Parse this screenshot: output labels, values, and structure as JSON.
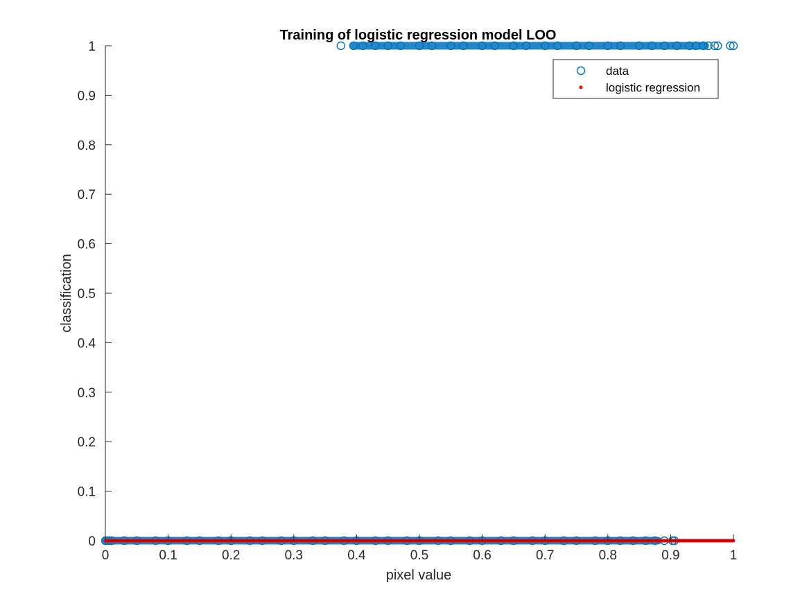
{
  "chart_data": {
    "type": "scatter",
    "title": "Training of logistic regression model LOO",
    "xlabel": "pixel value",
    "ylabel": "classification",
    "xlim": [
      0,
      1
    ],
    "ylim": [
      0,
      1
    ],
    "x_ticks": [
      0,
      0.1,
      0.2,
      0.3,
      0.4,
      0.5,
      0.6,
      0.7,
      0.8,
      0.9,
      1
    ],
    "x_tick_labels": [
      "0",
      "0.1",
      "0.2",
      "0.3",
      "0.4",
      "0.5",
      "0.6",
      "0.7",
      "0.8",
      "0.9",
      "1"
    ],
    "y_ticks": [
      0,
      0.1,
      0.2,
      0.3,
      0.4,
      0.5,
      0.6,
      0.7,
      0.8,
      0.9,
      1
    ],
    "y_tick_labels": [
      "0",
      "0.1",
      "0.2",
      "0.3",
      "0.4",
      "0.5",
      "0.6",
      "0.7",
      "0.8",
      "0.9",
      "1"
    ],
    "grid": false,
    "legend_position": "top-right",
    "series": [
      {
        "name": "data",
        "marker": "open-circle",
        "color": "#0072BD",
        "points": [
          {
            "x": 0.0,
            "y": 0
          },
          {
            "x": 0.005,
            "y": 0
          },
          {
            "x": 0.01,
            "y": 0
          },
          {
            "x": 0.03,
            "y": 0
          },
          {
            "x": 0.05,
            "y": 0
          },
          {
            "x": 0.08,
            "y": 0
          },
          {
            "x": 0.1,
            "y": 0
          },
          {
            "x": 0.13,
            "y": 0
          },
          {
            "x": 0.15,
            "y": 0
          },
          {
            "x": 0.18,
            "y": 0
          },
          {
            "x": 0.2,
            "y": 0
          },
          {
            "x": 0.23,
            "y": 0
          },
          {
            "x": 0.25,
            "y": 0
          },
          {
            "x": 0.28,
            "y": 0
          },
          {
            "x": 0.3,
            "y": 0
          },
          {
            "x": 0.33,
            "y": 0
          },
          {
            "x": 0.35,
            "y": 0
          },
          {
            "x": 0.38,
            "y": 0
          },
          {
            "x": 0.4,
            "y": 0
          },
          {
            "x": 0.43,
            "y": 0
          },
          {
            "x": 0.45,
            "y": 0
          },
          {
            "x": 0.48,
            "y": 0
          },
          {
            "x": 0.5,
            "y": 0
          },
          {
            "x": 0.53,
            "y": 0
          },
          {
            "x": 0.55,
            "y": 0
          },
          {
            "x": 0.58,
            "y": 0
          },
          {
            "x": 0.6,
            "y": 0
          },
          {
            "x": 0.63,
            "y": 0
          },
          {
            "x": 0.65,
            "y": 0
          },
          {
            "x": 0.68,
            "y": 0
          },
          {
            "x": 0.7,
            "y": 0
          },
          {
            "x": 0.73,
            "y": 0
          },
          {
            "x": 0.75,
            "y": 0
          },
          {
            "x": 0.78,
            "y": 0
          },
          {
            "x": 0.8,
            "y": 0
          },
          {
            "x": 0.82,
            "y": 0
          },
          {
            "x": 0.84,
            "y": 0
          },
          {
            "x": 0.86,
            "y": 0
          },
          {
            "x": 0.875,
            "y": 0
          },
          {
            "x": 0.89,
            "y": 0
          },
          {
            "x": 0.903,
            "y": 0
          },
          {
            "x": 0.906,
            "y": 0
          },
          {
            "x": 0.375,
            "y": 1
          },
          {
            "x": 0.395,
            "y": 1
          },
          {
            "x": 0.41,
            "y": 1
          },
          {
            "x": 0.43,
            "y": 1
          },
          {
            "x": 0.45,
            "y": 1
          },
          {
            "x": 0.47,
            "y": 1
          },
          {
            "x": 0.5,
            "y": 1
          },
          {
            "x": 0.52,
            "y": 1
          },
          {
            "x": 0.55,
            "y": 1
          },
          {
            "x": 0.57,
            "y": 1
          },
          {
            "x": 0.6,
            "y": 1
          },
          {
            "x": 0.62,
            "y": 1
          },
          {
            "x": 0.65,
            "y": 1
          },
          {
            "x": 0.67,
            "y": 1
          },
          {
            "x": 0.7,
            "y": 1
          },
          {
            "x": 0.72,
            "y": 1
          },
          {
            "x": 0.75,
            "y": 1
          },
          {
            "x": 0.77,
            "y": 1
          },
          {
            "x": 0.8,
            "y": 1
          },
          {
            "x": 0.82,
            "y": 1
          },
          {
            "x": 0.85,
            "y": 1
          },
          {
            "x": 0.87,
            "y": 1
          },
          {
            "x": 0.89,
            "y": 1
          },
          {
            "x": 0.91,
            "y": 1
          },
          {
            "x": 0.93,
            "y": 1
          },
          {
            "x": 0.94,
            "y": 1
          },
          {
            "x": 0.952,
            "y": 1
          },
          {
            "x": 0.96,
            "y": 1
          },
          {
            "x": 0.97,
            "y": 1
          },
          {
            "x": 0.975,
            "y": 1
          },
          {
            "x": 0.995,
            "y": 1
          },
          {
            "x": 1.0,
            "y": 1
          }
        ]
      },
      {
        "name": "logistic regression",
        "marker": "dot",
        "color": "#FF0000",
        "x": [
          0.0,
          0.05,
          0.1,
          0.15,
          0.2,
          0.25,
          0.3,
          0.35,
          0.4,
          0.45,
          0.5,
          0.55,
          0.6,
          0.65,
          0.7,
          0.75,
          0.8,
          0.85,
          0.9,
          0.95,
          1.0
        ],
        "y": [
          0,
          0,
          0,
          0,
          0,
          0,
          0,
          0,
          0,
          0,
          0,
          0,
          0,
          0,
          0,
          0,
          0,
          0,
          0,
          0,
          0
        ]
      }
    ]
  }
}
